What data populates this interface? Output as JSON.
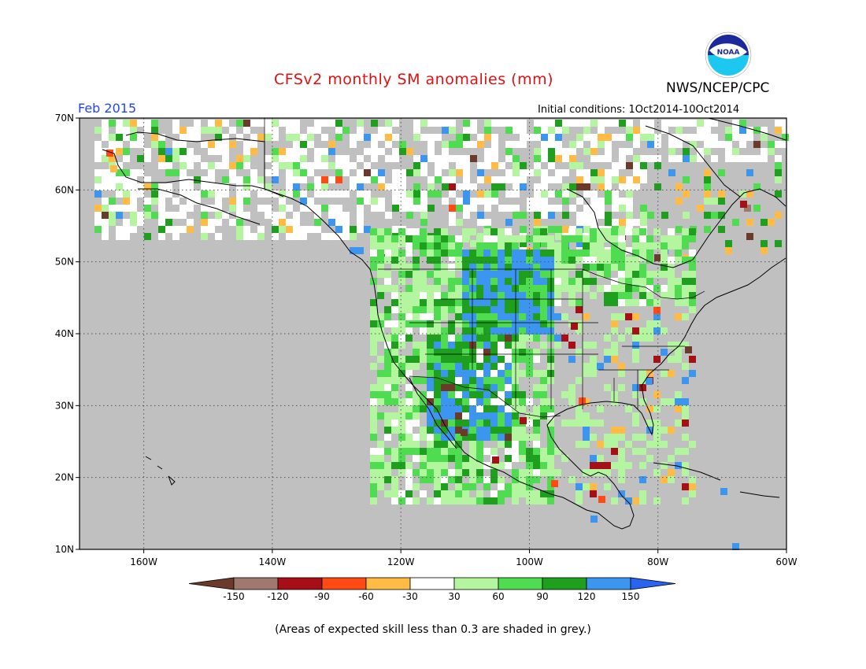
{
  "title": "CFSv2 monthly SM anomalies (mm)",
  "agency": "NWS/NCEP/CPC",
  "logo_text": "NOAA",
  "valid_month": "Feb 2015",
  "initial_conditions": "Initial conditions: 1Oct2014-10Oct2014",
  "footnote": "(Areas of expected skill less than 0.3 are shaded in grey.)",
  "map": {
    "lon_range": [
      -170,
      -60
    ],
    "lat_range": [
      10,
      70
    ],
    "lon_ticks": [
      {
        "value": -160,
        "label": "160W"
      },
      {
        "value": -140,
        "label": "140W"
      },
      {
        "value": -120,
        "label": "120W"
      },
      {
        "value": -100,
        "label": "100W"
      },
      {
        "value": -80,
        "label": "80W"
      },
      {
        "value": -60,
        "label": "60W"
      }
    ],
    "lat_ticks": [
      {
        "value": 10,
        "label": "10N"
      },
      {
        "value": 20,
        "label": "20N"
      },
      {
        "value": 30,
        "label": "30N"
      },
      {
        "value": 40,
        "label": "40N"
      },
      {
        "value": 50,
        "label": "50N"
      },
      {
        "value": 60,
        "label": "60N"
      },
      {
        "value": 70,
        "label": "70N"
      }
    ],
    "low_skill_color": "#c0c0c0",
    "gridlines": "dotted"
  },
  "colorbar": {
    "ticks": [
      "-150",
      "-120",
      "-90",
      "-60",
      "-30",
      "30",
      "60",
      "90",
      "120",
      "150"
    ],
    "colors": [
      "#6b3a2a",
      "#a0786e",
      "#a50f15",
      "#ff4a14",
      "#ffbb44",
      "#ffffff",
      "#b4f5a0",
      "#50dc50",
      "#1ea01e",
      "#3c96f0",
      "#2864f0"
    ]
  },
  "colors": {
    "title": "#e01010",
    "valid_month": "#2244ee",
    "land_neutral": "#ffffff",
    "ocean": "#c0c0c0"
  }
}
